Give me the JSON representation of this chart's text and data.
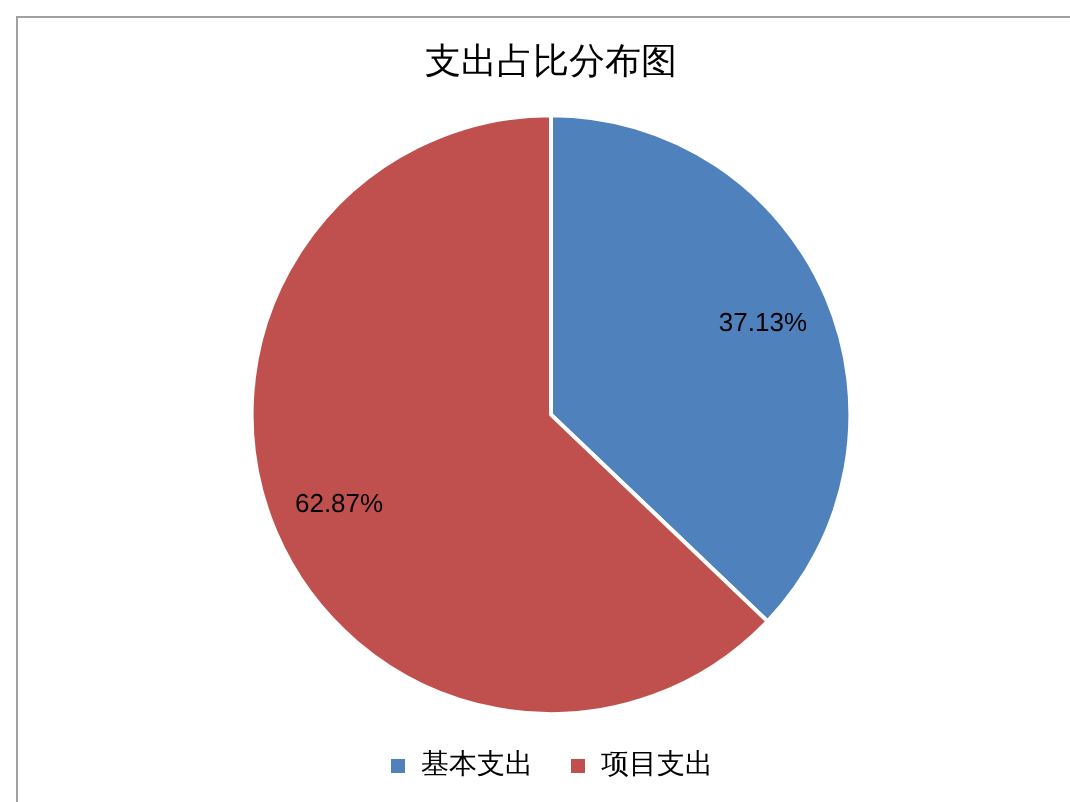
{
  "chart_data": {
    "type": "pie",
    "title": "支出占比分布图",
    "categories": [
      "基本支出",
      "项目支出"
    ],
    "values": [
      37.13,
      62.87
    ],
    "colors": [
      "#4f81bd",
      "#c0504d"
    ],
    "value_labels": [
      "37.13%",
      "62.87%"
    ],
    "legend": "bottom"
  }
}
